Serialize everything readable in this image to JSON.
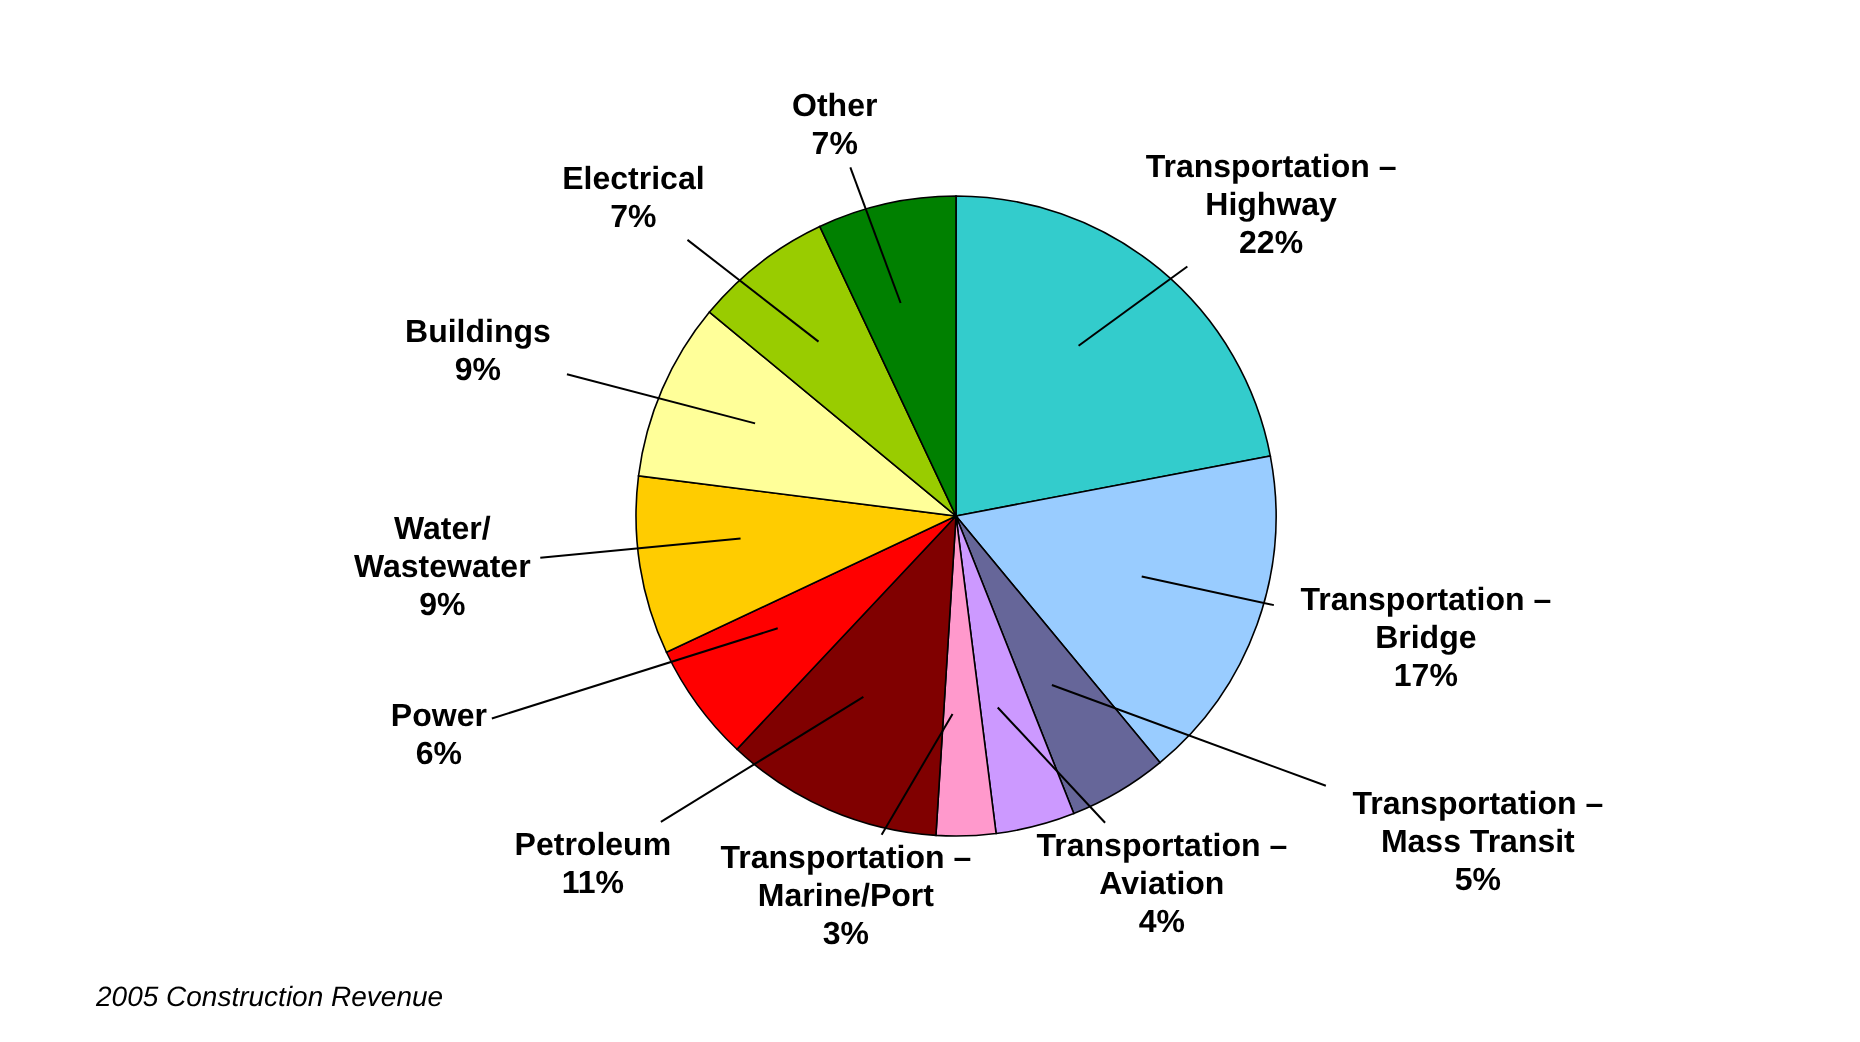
{
  "chart_data": {
    "type": "pie",
    "categories": [
      "Transportation – Highway",
      "Transportation – Bridge",
      "Transportation – Mass Transit",
      "Transportation – Aviation",
      "Transportation – Marine/Port",
      "Petroleum",
      "Power",
      "Water/ Wastewater",
      "Buildings",
      "Electrical",
      "Other"
    ],
    "values": [
      22,
      17,
      5,
      4,
      3,
      11,
      6,
      9,
      9,
      7,
      7
    ],
    "value_labels": [
      "22%",
      "17%",
      "5%",
      "4%",
      "3%",
      "11%",
      "6%",
      "9%",
      "9%",
      "7%",
      "7%"
    ],
    "colors": [
      "#33cccc",
      "#99ccff",
      "#666699",
      "#cc99ff",
      "#ff99cc",
      "#800000",
      "#ff0000",
      "#ffcc00",
      "#ffff99",
      "#99cc00",
      "#008000"
    ],
    "legend": false,
    "annotations": [
      "2005 Construction Revenue"
    ]
  }
}
